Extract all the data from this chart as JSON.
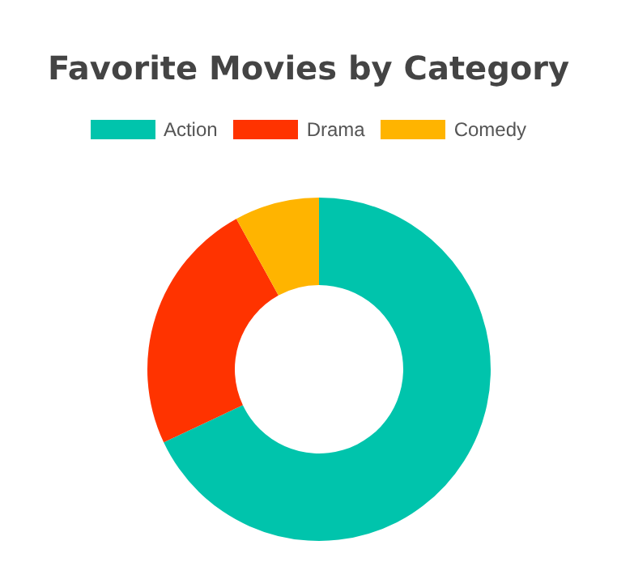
{
  "chart_data": {
    "type": "donut",
    "title": "Favorite Movies by Category",
    "categories": [
      "Action",
      "Drama",
      "Comedy"
    ],
    "values": [
      68,
      24,
      8
    ],
    "colors": [
      "#00c4ac",
      "#ff3300",
      "#ffb400"
    ],
    "legend": "top"
  }
}
